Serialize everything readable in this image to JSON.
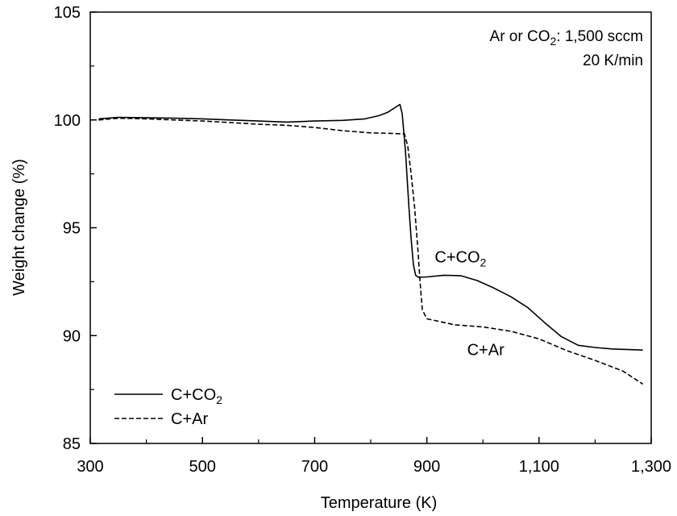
{
  "chart_data": {
    "type": "line",
    "title": "",
    "xlabel": "Temperature (K)",
    "ylabel": "Weight change (%)",
    "xlim": [
      300,
      1300
    ],
    "ylim": [
      85,
      105
    ],
    "x_ticks": [
      300,
      500,
      700,
      900,
      1100,
      1300
    ],
    "x_tick_labels": [
      "300",
      "500",
      "700",
      "900",
      "1,100",
      "1,300"
    ],
    "y_ticks": [
      85,
      90,
      95,
      100,
      105
    ],
    "y_tick_labels": [
      "85",
      "90",
      "95",
      "100",
      "105"
    ],
    "grid": false,
    "legend_position": "bottom-left",
    "annotations": [
      {
        "prefix": "Ar or CO",
        "sub": "2",
        "suffix": ": 1,500 sccm"
      },
      {
        "prefix": "20 K/min",
        "sub": "",
        "suffix": ""
      }
    ],
    "series": [
      {
        "name": "C+CO2",
        "legend_label": {
          "prefix": "C+CO",
          "sub": "2"
        },
        "curve_label": {
          "prefix": "C+CO",
          "sub": "2"
        },
        "line_style": "solid",
        "color": "#000000",
        "points": [
          [
            315,
            100.05
          ],
          [
            350,
            100.12
          ],
          [
            400,
            100.1
          ],
          [
            450,
            100.08
          ],
          [
            500,
            100.05
          ],
          [
            550,
            100.0
          ],
          [
            600,
            99.95
          ],
          [
            650,
            99.9
          ],
          [
            700,
            99.95
          ],
          [
            750,
            99.98
          ],
          [
            790,
            100.05
          ],
          [
            815,
            100.2
          ],
          [
            830,
            100.35
          ],
          [
            845,
            100.6
          ],
          [
            852,
            100.72
          ],
          [
            856,
            100.3
          ],
          [
            862,
            98.5
          ],
          [
            868,
            96.0
          ],
          [
            872,
            94.5
          ],
          [
            876,
            93.3
          ],
          [
            880,
            92.8
          ],
          [
            885,
            92.7
          ],
          [
            900,
            92.72
          ],
          [
            930,
            92.8
          ],
          [
            960,
            92.78
          ],
          [
            990,
            92.55
          ],
          [
            1020,
            92.2
          ],
          [
            1050,
            91.8
          ],
          [
            1080,
            91.3
          ],
          [
            1110,
            90.6
          ],
          [
            1140,
            89.95
          ],
          [
            1170,
            89.55
          ],
          [
            1200,
            89.45
          ],
          [
            1230,
            89.38
          ],
          [
            1260,
            89.35
          ],
          [
            1285,
            89.33
          ]
        ]
      },
      {
        "name": "C+Ar",
        "legend_label": {
          "prefix": "C+Ar",
          "sub": ""
        },
        "curve_label": {
          "prefix": "C+Ar",
          "sub": ""
        },
        "line_style": "dashed",
        "color": "#000000",
        "points": [
          [
            315,
            100.0
          ],
          [
            350,
            100.08
          ],
          [
            400,
            100.05
          ],
          [
            450,
            100.0
          ],
          [
            500,
            99.95
          ],
          [
            550,
            99.88
          ],
          [
            600,
            99.8
          ],
          [
            650,
            99.75
          ],
          [
            700,
            99.65
          ],
          [
            750,
            99.5
          ],
          [
            800,
            99.4
          ],
          [
            830,
            99.38
          ],
          [
            860,
            99.35
          ],
          [
            866,
            98.8
          ],
          [
            872,
            97.5
          ],
          [
            878,
            96.0
          ],
          [
            884,
            94.0
          ],
          [
            888,
            92.5
          ],
          [
            892,
            91.2
          ],
          [
            900,
            90.78
          ],
          [
            950,
            90.5
          ],
          [
            1000,
            90.4
          ],
          [
            1050,
            90.2
          ],
          [
            1100,
            89.85
          ],
          [
            1150,
            89.3
          ],
          [
            1200,
            88.85
          ],
          [
            1250,
            88.35
          ],
          [
            1285,
            87.75
          ]
        ]
      }
    ],
    "curve_label_anchors": [
      {
        "series": 0,
        "x": 960,
        "y": 93.4
      },
      {
        "series": 1,
        "x": 1005,
        "y": 89.1
      }
    ]
  }
}
